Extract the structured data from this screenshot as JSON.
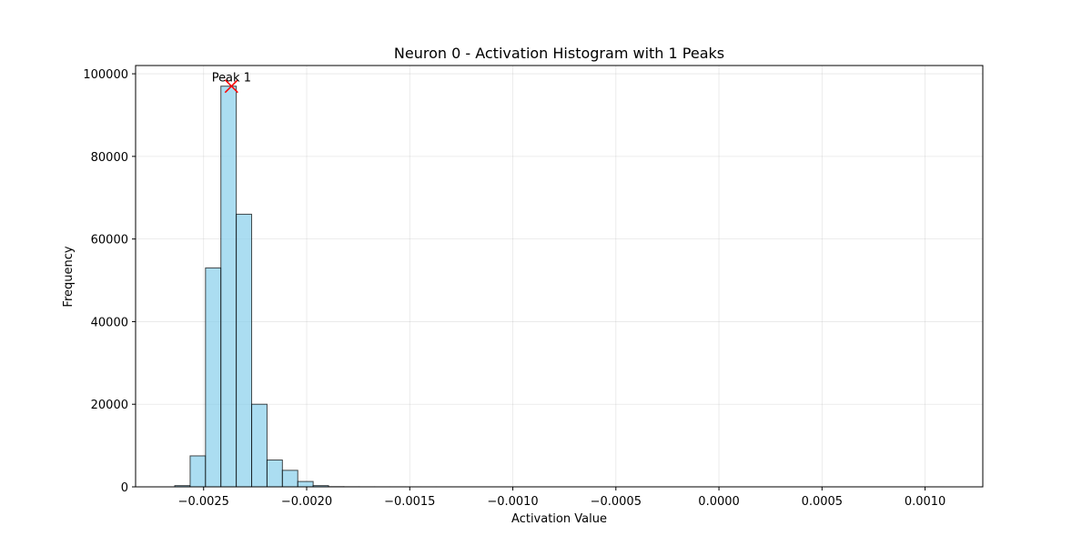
{
  "chart_data": {
    "type": "bar",
    "title": "Neuron 0 - Activation Histogram with 1 Peaks",
    "xlabel": "Activation Value",
    "ylabel": "Frequency",
    "xlim": [
      -0.00283,
      0.00128
    ],
    "ylim": [
      0,
      102000
    ],
    "x_ticks": [
      -0.0025,
      -0.002,
      -0.0015,
      -0.001,
      -0.0005,
      0.0,
      0.0005,
      0.001
    ],
    "x_tick_labels": [
      "−0.0025",
      "−0.0020",
      "−0.0015",
      "−0.0010",
      "−0.0005",
      "0.0000",
      "0.0005",
      "0.0010"
    ],
    "y_ticks": [
      0,
      20000,
      40000,
      60000,
      80000,
      100000
    ],
    "y_tick_labels": [
      "0",
      "20000",
      "40000",
      "60000",
      "80000",
      "100000"
    ],
    "bin_start": -0.00264,
    "bin_width": 7.46e-05,
    "counts": [
      300,
      7500,
      53000,
      97000,
      66000,
      20000,
      6500,
      4000,
      1300,
      300,
      40,
      20,
      10,
      5,
      5,
      3,
      2,
      2,
      1,
      1,
      1,
      1,
      1,
      1,
      1,
      1,
      1,
      1,
      1,
      1,
      1,
      1,
      1,
      1,
      1,
      1,
      1,
      1,
      1,
      1,
      1,
      1,
      1,
      1,
      1,
      1,
      1,
      1,
      1,
      1
    ],
    "bar_color": "#87ceeb",
    "bar_edge_color": "#000000",
    "grid": true,
    "peaks": [
      {
        "label": "Peak 1",
        "x": -0.002365,
        "y": 97000,
        "marker": "x",
        "color": "#ff0000"
      }
    ]
  }
}
